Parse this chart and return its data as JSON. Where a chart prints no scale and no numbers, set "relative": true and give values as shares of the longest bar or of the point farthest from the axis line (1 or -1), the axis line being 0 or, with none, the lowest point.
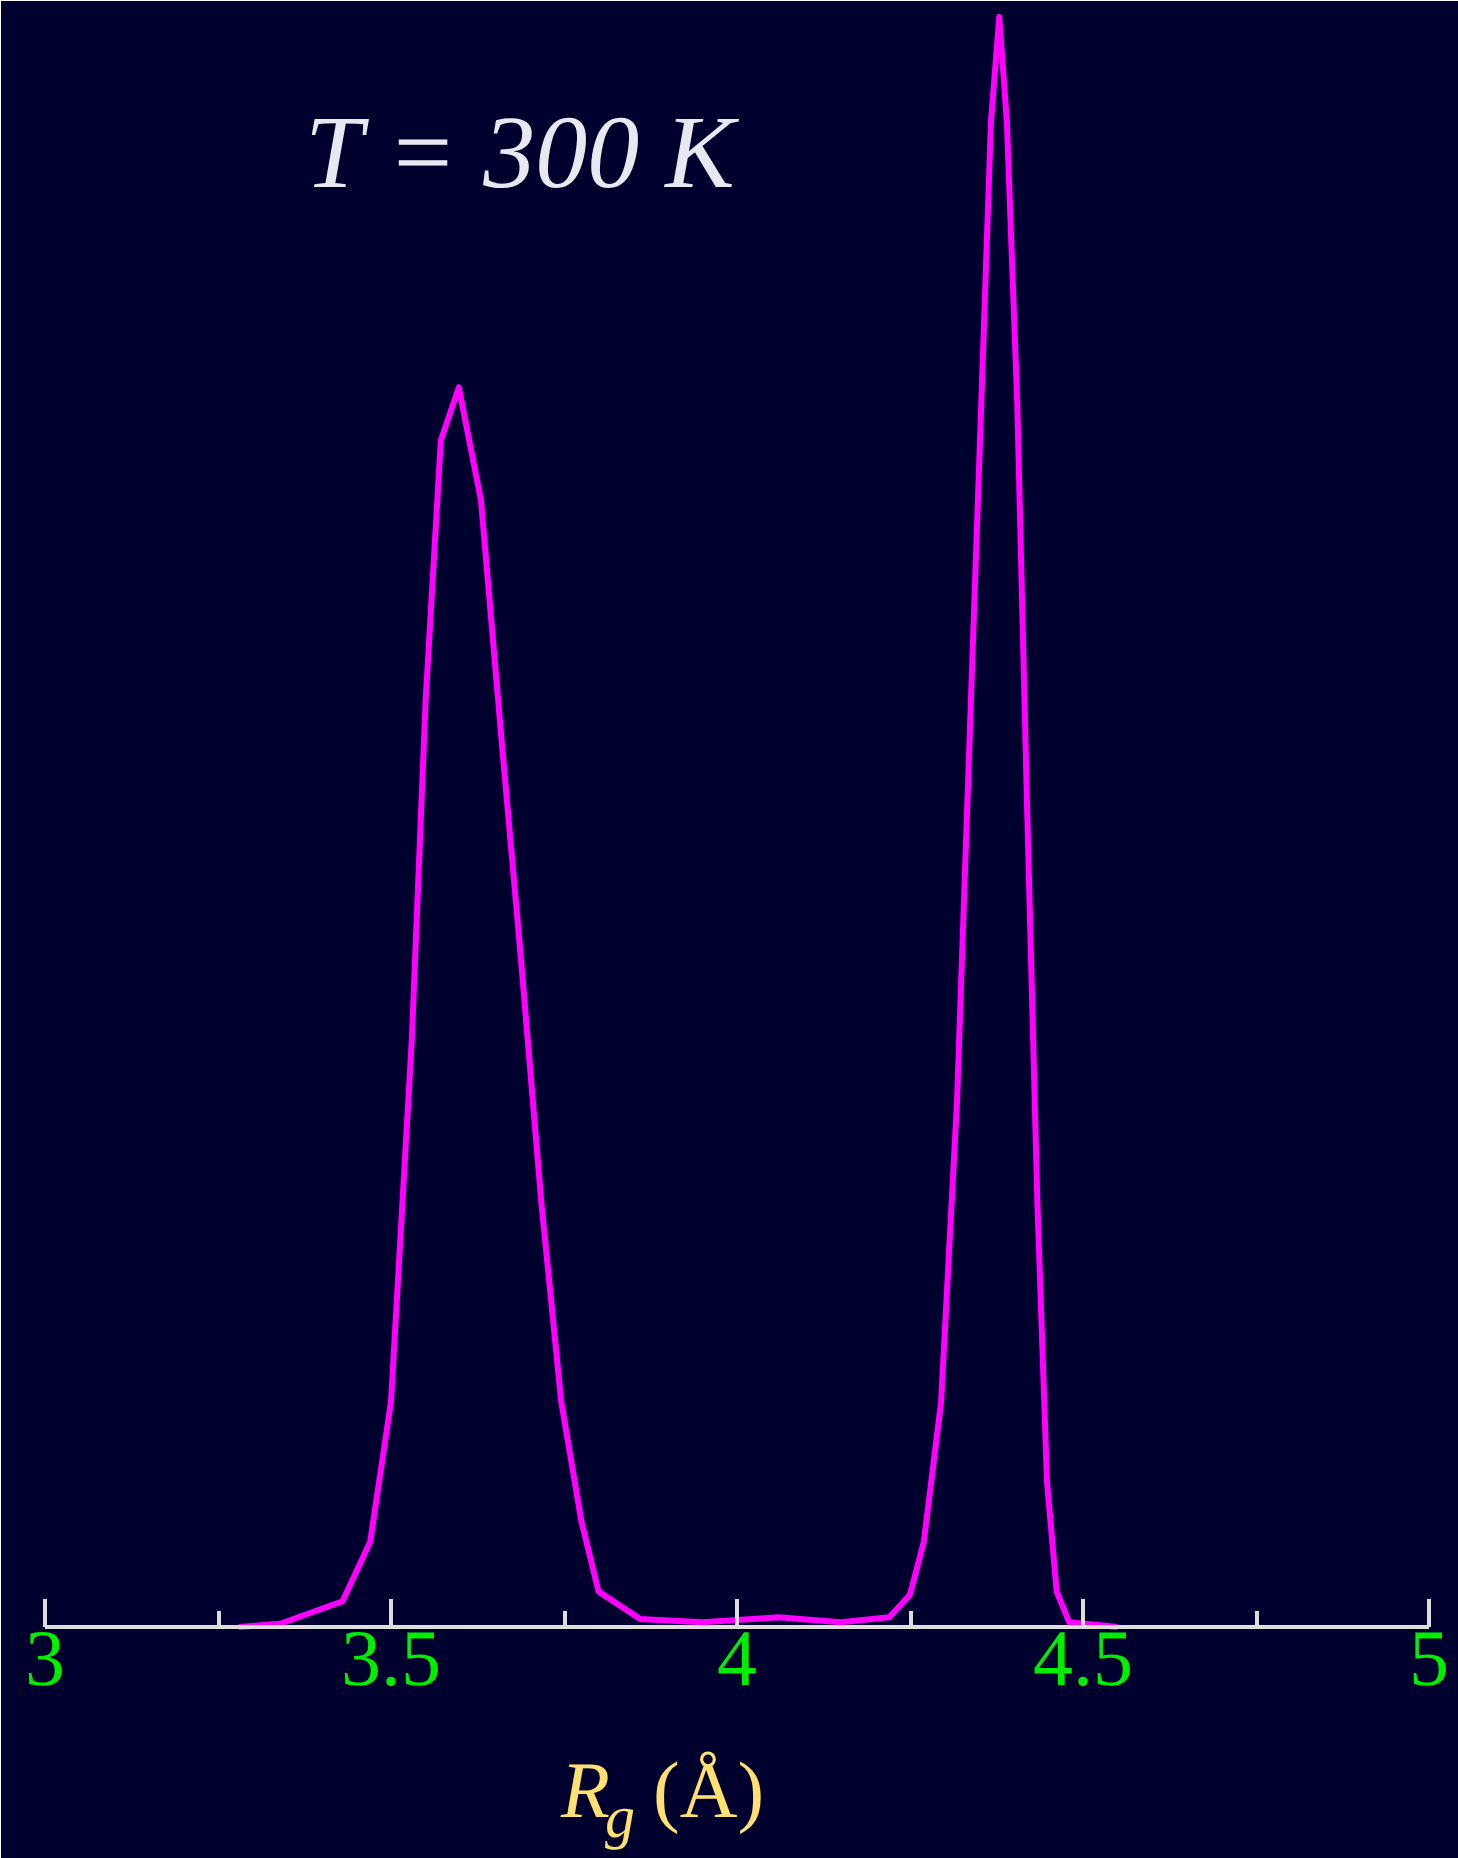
{
  "chart_data": {
    "type": "line",
    "relative": true,
    "xlabel": "R$_{g}$ (Å)",
    "annotations": [
      "T = 300 K"
    ],
    "x": [
      3.28,
      3.34,
      3.43,
      3.47,
      3.5,
      3.53,
      3.55,
      3.572,
      3.598,
      3.63,
      3.66,
      3.688,
      3.717,
      3.746,
      3.775,
      3.8,
      3.86,
      3.95,
      4.06,
      4.15,
      4.22,
      4.25,
      4.27,
      4.295,
      4.318,
      4.338,
      4.353,
      4.367,
      4.379,
      4.39,
      4.405,
      4.419,
      4.434,
      4.448,
      4.462,
      4.48,
      4.55
    ],
    "series": [
      {
        "color": "#ff00ff",
        "values": [
          0,
          0.002,
          0.016,
          0.053,
          0.14,
          0.364,
          0.575,
          0.737,
          0.77,
          0.7,
          0.55,
          0.414,
          0.265,
          0.14,
          0.066,
          0.022,
          0.005,
          0.003,
          0.006,
          0.003,
          0.006,
          0.02,
          0.053,
          0.14,
          0.327,
          0.575,
          0.76,
          0.935,
          1,
          0.935,
          0.76,
          0.513,
          0.265,
          0.09,
          0.022,
          0.003,
          0
        ]
      }
    ],
    "xlim": [
      3,
      5
    ],
    "xticks": [
      3,
      {
        "value": 3.25,
        "label": null
      },
      3.5,
      {
        "value": 3.75,
        "label": null
      },
      4,
      {
        "value": 4.25,
        "label": null
      },
      4.5,
      {
        "value": 4.75,
        "label": null
      },
      5
    ],
    "grid": false,
    "marker": "none",
    "line_style": "solid"
  }
}
